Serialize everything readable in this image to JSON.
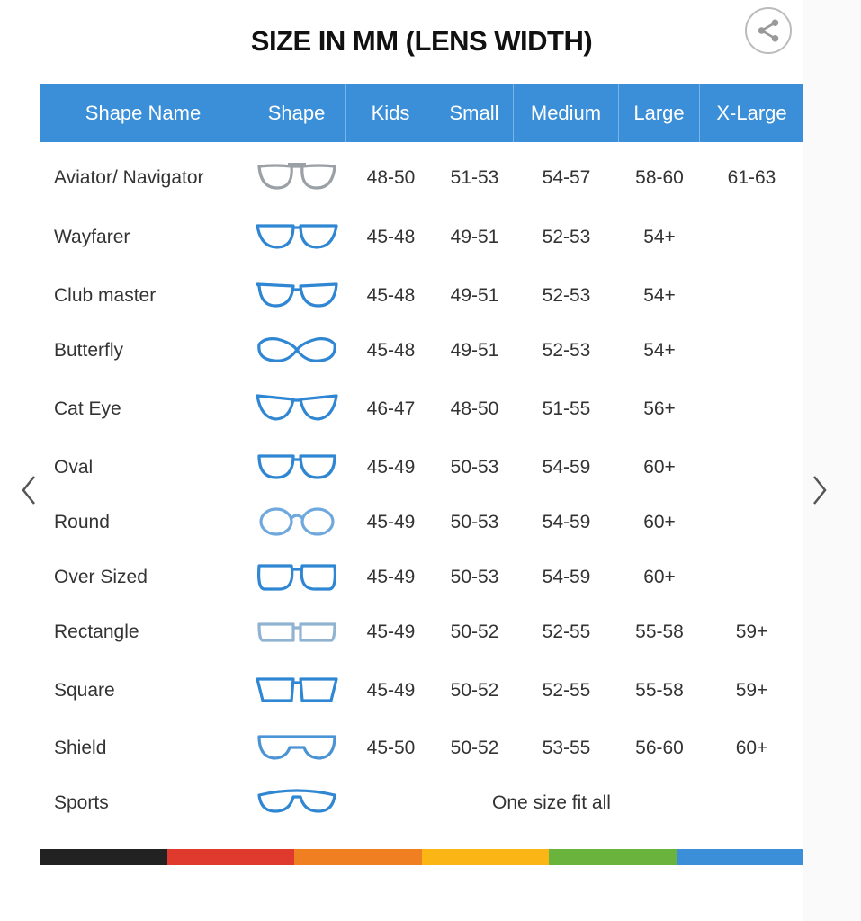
{
  "title": "SIZE IN MM (LENS WIDTH)",
  "share_icon": "share-icon",
  "header": [
    "Shape Name",
    "Shape",
    "Kids",
    "Small",
    "Medium",
    "Large",
    "X-Large"
  ],
  "rows": [
    {
      "name": "Aviator/ Navigator",
      "shape": "aviator",
      "color": "#9aa0a6",
      "sizes": [
        "48-50",
        "51-53",
        "54-57",
        "58-60",
        "61-63"
      ]
    },
    {
      "name": "Wayfarer",
      "shape": "wayfarer",
      "color": "#2f86d2",
      "sizes": [
        "45-48",
        "49-51",
        "52-53",
        "54+",
        ""
      ]
    },
    {
      "name": "Club master",
      "shape": "clubmaster",
      "color": "#2f86d2",
      "sizes": [
        "45-48",
        "49-51",
        "52-53",
        "54+",
        ""
      ]
    },
    {
      "name": "Butterfly",
      "shape": "butterfly",
      "color": "#2f86d2",
      "sizes": [
        "45-48",
        "49-51",
        "52-53",
        "54+",
        ""
      ]
    },
    {
      "name": "Cat Eye",
      "shape": "cateye",
      "color": "#2f86d2",
      "sizes": [
        "46-47",
        "48-50",
        "51-55",
        "56+",
        ""
      ]
    },
    {
      "name": "Oval",
      "shape": "oval",
      "color": "#2f86d2",
      "sizes": [
        "45-49",
        "50-53",
        "54-59",
        "60+",
        ""
      ]
    },
    {
      "name": "Round",
      "shape": "round",
      "color": "#6fa8dc",
      "sizes": [
        "45-49",
        "50-53",
        "54-59",
        "60+",
        ""
      ]
    },
    {
      "name": "Over Sized",
      "shape": "oversized",
      "color": "#2f86d2",
      "sizes": [
        "45-49",
        "50-53",
        "54-59",
        "60+",
        ""
      ]
    },
    {
      "name": "Rectangle",
      "shape": "rectangle",
      "color": "#8fb3d1",
      "sizes": [
        "45-49",
        "50-52",
        "52-55",
        "55-58",
        "59+"
      ]
    },
    {
      "name": "Square",
      "shape": "square",
      "color": "#2f86d2",
      "sizes": [
        "45-49",
        "50-52",
        "52-55",
        "55-58",
        "59+"
      ]
    },
    {
      "name": "Shield",
      "shape": "shield",
      "color": "#4a93d4",
      "sizes": [
        "45-50",
        "50-52",
        "53-55",
        "56-60",
        "60+"
      ]
    },
    {
      "name": "Sports",
      "shape": "sports",
      "color": "#2f86d2",
      "span_text": "One size fit all"
    }
  ],
  "colors": {
    "header_bg": "#3a8fd8",
    "bar": [
      "#222222",
      "#e03a2e",
      "#f07f22",
      "#fbb615",
      "#6ab43e",
      "#3a8fd8"
    ]
  },
  "nav": {
    "prev_icon": "chevron-left-icon",
    "next_icon": "chevron-right-icon"
  }
}
